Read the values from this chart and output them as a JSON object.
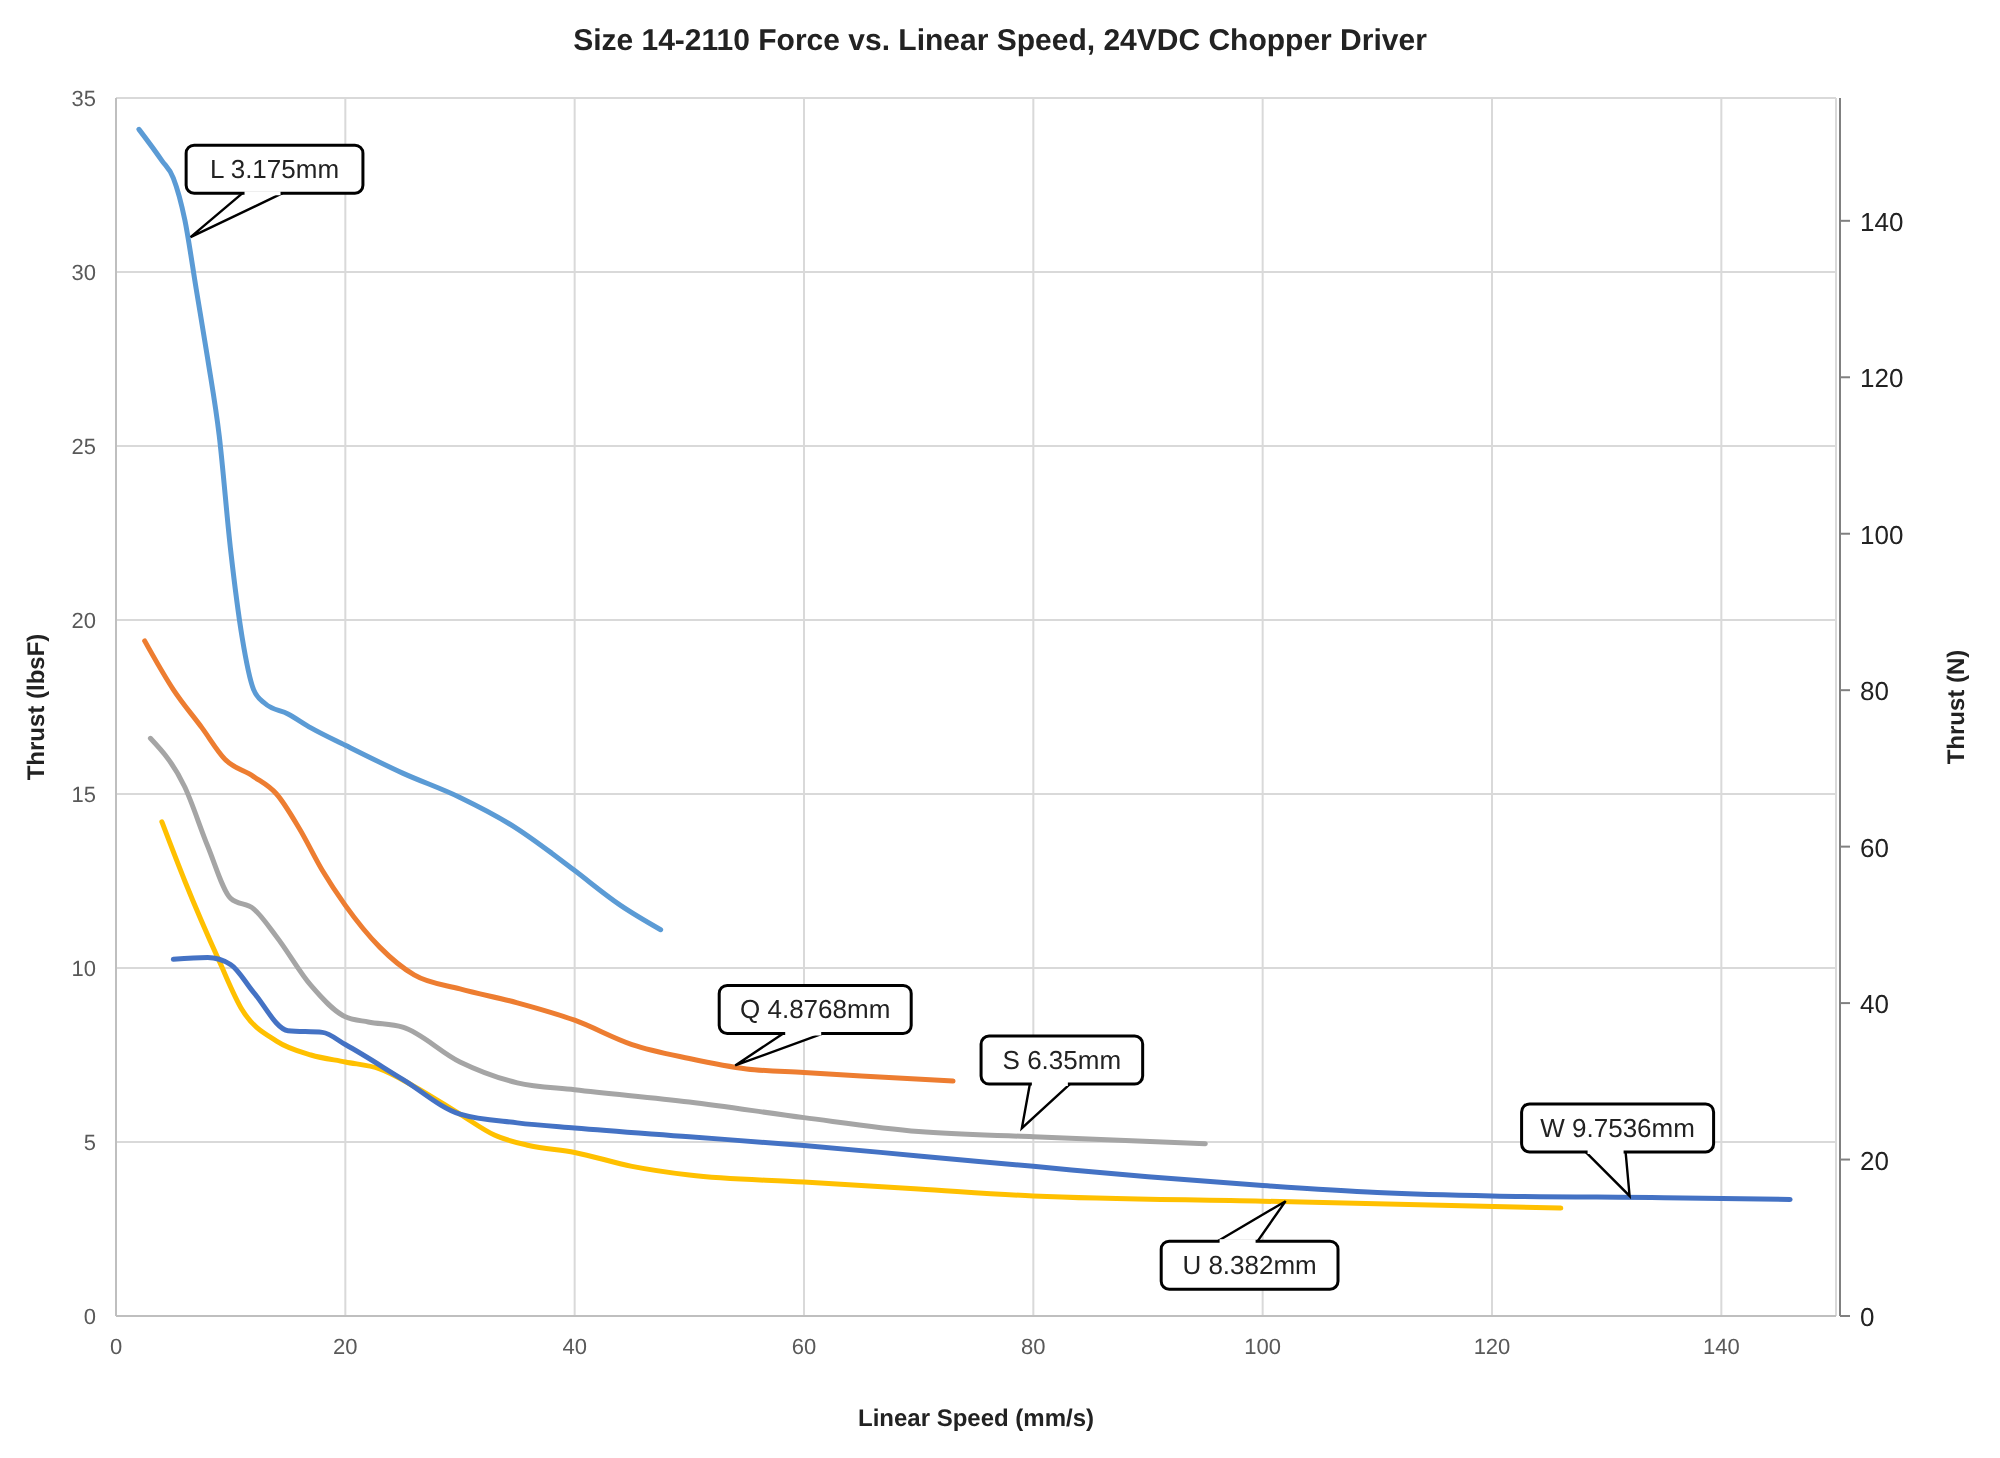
{
  "chart_data": {
    "type": "line",
    "title": "Size 14-2110 Force vs. Linear Speed, 24VDC Chopper Driver",
    "xlabel": "Linear Speed (mm/s)",
    "ylabel": "Thrust (lbsF)",
    "y2label": "Thrust (N)",
    "xlim": [
      0,
      150
    ],
    "xticks": [
      0,
      20,
      40,
      60,
      80,
      100,
      120,
      140
    ],
    "ylim": [
      0,
      35
    ],
    "yticks": [
      0,
      5,
      10,
      15,
      20,
      25,
      30,
      35
    ],
    "y2lim": [
      0,
      155.7
    ],
    "y2ticks": [
      0,
      20,
      40,
      60,
      80,
      100,
      120,
      140
    ],
    "grid": true,
    "marker": "none",
    "line_style": "solid",
    "series": [
      {
        "color": "#5b9bd5",
        "x": [
          2,
          4,
          5,
          6,
          7,
          8,
          9,
          10,
          11,
          12,
          13,
          15,
          17,
          20,
          25,
          30,
          35,
          38,
          40,
          44,
          47.5
        ],
        "values": [
          34.1,
          33.2,
          32.7,
          31.5,
          29.5,
          27.5,
          25.3,
          22,
          19.5,
          18,
          17.6,
          17.3,
          16.9,
          16.4,
          15.6,
          14.9,
          14,
          13.3,
          12.8,
          11.8,
          11.1
        ]
      },
      {
        "color": "#ed7d31",
        "x": [
          2.5,
          5,
          7.5,
          9.5,
          12,
          14,
          16,
          18,
          20,
          23,
          26,
          30,
          35,
          40,
          45,
          50,
          55,
          60,
          65,
          73
        ],
        "values": [
          19.4,
          18,
          16.9,
          16,
          15.5,
          15,
          14,
          12.8,
          11.8,
          10.6,
          9.8,
          9.4,
          9,
          8.5,
          7.8,
          7.4,
          7.1,
          7,
          6.9,
          6.75
        ]
      },
      {
        "color": "#a5a5a5",
        "x": [
          3,
          6,
          8,
          10,
          12,
          14,
          17,
          20,
          22,
          25,
          30,
          35,
          40,
          50,
          60,
          70,
          80,
          95
        ],
        "values": [
          16.6,
          15.2,
          13.5,
          12,
          11.7,
          10.9,
          9.5,
          8.6,
          8.45,
          8.3,
          7.3,
          6.7,
          6.5,
          6.15,
          5.7,
          5.3,
          5.15,
          4.95
        ]
      },
      {
        "color": "#ffc000",
        "x": [
          4,
          6,
          9,
          11,
          14,
          17,
          20,
          23,
          26,
          30,
          33,
          36,
          40,
          45,
          50,
          60,
          70,
          80,
          100,
          126
        ],
        "values": [
          14.2,
          12.5,
          10.2,
          8.8,
          7.9,
          7.5,
          7.3,
          7.1,
          6.6,
          5.8,
          5.2,
          4.9,
          4.7,
          4.3,
          4.05,
          3.85,
          3.65,
          3.45,
          3.3,
          3.1
        ]
      },
      {
        "color": "#4472c4",
        "x": [
          5,
          8,
          10,
          12,
          15,
          18,
          20,
          25,
          30,
          35,
          40,
          50,
          60,
          70,
          80,
          90,
          100,
          110,
          120,
          135,
          146
        ],
        "values": [
          10.25,
          10.3,
          10.1,
          9.3,
          8.2,
          8.15,
          7.8,
          6.8,
          5.8,
          5.55,
          5.4,
          5.15,
          4.9,
          4.6,
          4.3,
          4,
          3.75,
          3.55,
          3.45,
          3.4,
          3.35
        ]
      }
    ],
    "annotations": [
      {
        "text": "L 3.175mm",
        "x": 6.5,
        "y": 31
      },
      {
        "text": "Q 4.8768mm",
        "x": 54,
        "y": 7.2
      },
      {
        "text": "S 6.35mm",
        "x": 79,
        "y": 5.4
      },
      {
        "text": "U 8.382mm",
        "x": 102,
        "y": 3.3
      },
      {
        "text": "W 9.7536mm",
        "x": 132,
        "y": 3.45
      }
    ]
  }
}
